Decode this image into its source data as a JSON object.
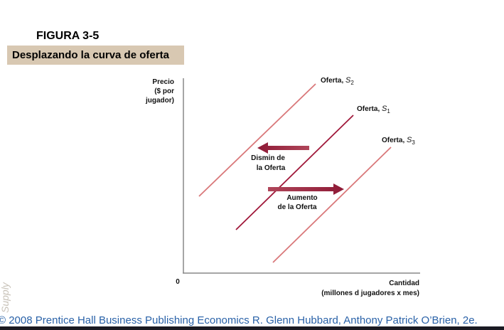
{
  "header": {
    "figure": "FIGURA 3-5",
    "title": "Desplazando la curva de oferta"
  },
  "axes": {
    "y_label": [
      "Precio",
      "($ por",
      "jugador)"
    ],
    "origin": "0",
    "x_label": [
      "Cantidad",
      "(millones d jugadores x mes)"
    ]
  },
  "curves": [
    {
      "name": "Oferta,",
      "symbol": "S",
      "sub": "2"
    },
    {
      "name": "Oferta,",
      "symbol": "S",
      "sub": "1"
    },
    {
      "name": "Oferta,",
      "symbol": "S",
      "sub": "3"
    }
  ],
  "annotations": [
    [
      "Dismin de",
      "la Oferta"
    ],
    [
      "Aumento",
      "de la Oferta"
    ]
  ],
  "footer": {
    "side": "Supply",
    "credit": "© 2008 Prentice Hall Business Publishing   Economics  R. Glenn Hubbard, Anthony Patrick O’Brien, 2e."
  }
}
